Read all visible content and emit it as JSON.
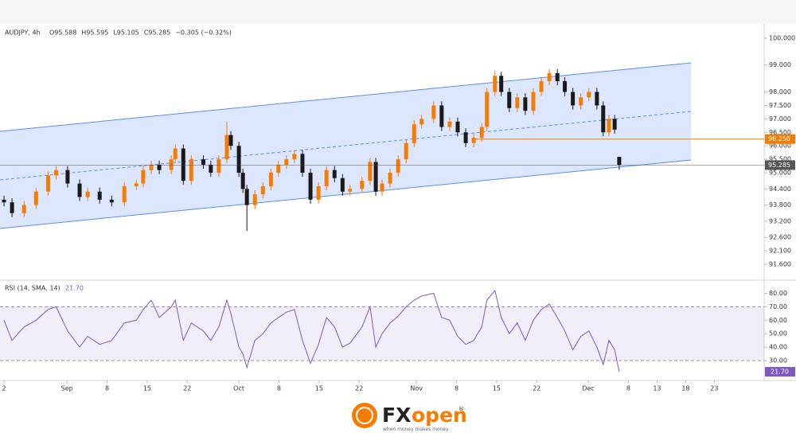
{
  "chart_data": [
    {
      "type": "candlestick",
      "title": "AUDJPY, 4h",
      "ohlc_header": [
        "O95.588",
        "H95.595",
        "L95.105",
        "C95.285",
        "−0.305 (−0.32%)"
      ],
      "x": [
        -11,
        -9.6,
        -7.5,
        -5.4,
        -3.3,
        -1.9,
        0.1,
        2.2,
        3.6,
        5.7,
        7.8,
        10.0,
        12.1,
        13.3,
        14.7,
        16.1,
        18.2,
        18.9,
        20.3,
        21.7,
        23.8,
        25.1,
        26.5,
        27.9,
        28.6,
        30.0,
        30.7,
        31.4,
        32.8,
        34.2,
        35.6,
        36.9,
        38.3,
        39.7,
        41.1,
        42.5,
        43.9,
        45.3,
        46.7,
        48.1,
        49.4,
        51.5,
        52.9,
        53.9,
        55.0,
        56.4,
        57.8,
        59.2,
        60.6,
        61.9,
        64.0,
        65.4,
        66.8,
        68.2,
        69.6,
        71.0,
        72.4,
        73.3,
        74.7,
        75.8,
        77.2,
        78.6,
        80.0,
        81.4,
        82.8,
        84.2,
        85.6,
        86.9,
        88.3,
        89.7,
        91.1,
        92.5,
        93.6,
        94.6,
        95.6,
        96.4
      ],
      "open": [
        94.0,
        93.9,
        93.5,
        93.8,
        94.3,
        94.9,
        95.1,
        94.6,
        94.1,
        94.3,
        94.0,
        93.9,
        94.5,
        94.6,
        95.1,
        95.3,
        95.1,
        95.5,
        95.9,
        94.7,
        95.5,
        95.3,
        95.0,
        95.5,
        96.4,
        96.0,
        95.0,
        94.4,
        93.8,
        94.2,
        94.5,
        95.0,
        95.3,
        95.5,
        95.7,
        95.0,
        94.0,
        94.5,
        95.1,
        94.8,
        94.3,
        94.4,
        94.7,
        95.4,
        94.3,
        94.6,
        95.0,
        95.5,
        96.1,
        96.8,
        97.0,
        97.5,
        96.7,
        96.9,
        96.5,
        96.1,
        96.3,
        96.7,
        98.0,
        98.6,
        98.0,
        97.4,
        97.8,
        97.3,
        98.0,
        98.4,
        98.7,
        98.4,
        98.0,
        97.5,
        97.8,
        98.0,
        97.5,
        96.5,
        97.0,
        95.588
      ],
      "high": [
        94.15,
        94.05,
        93.95,
        94.45,
        95.05,
        95.25,
        95.25,
        94.75,
        94.45,
        94.45,
        94.15,
        94.65,
        94.75,
        95.25,
        95.45,
        95.45,
        95.65,
        96.05,
        96.05,
        95.65,
        95.65,
        95.45,
        95.65,
        96.9,
        96.55,
        96.15,
        95.15,
        94.55,
        94.35,
        94.65,
        95.15,
        95.45,
        95.65,
        95.85,
        95.85,
        95.15,
        94.65,
        95.25,
        95.25,
        94.95,
        94.55,
        94.85,
        95.55,
        95.55,
        94.75,
        95.15,
        95.65,
        96.25,
        96.95,
        97.15,
        97.65,
        97.65,
        97.05,
        97.05,
        96.65,
        96.45,
        96.85,
        98.15,
        98.8,
        98.75,
        98.15,
        97.95,
        97.95,
        98.15,
        98.55,
        98.85,
        98.85,
        98.55,
        98.15,
        97.95,
        98.15,
        98.15,
        97.65,
        97.15,
        97.15,
        95.595
      ],
      "low": [
        93.75,
        93.35,
        93.35,
        93.65,
        94.15,
        94.75,
        94.45,
        93.95,
        93.95,
        93.85,
        93.75,
        93.75,
        94.35,
        94.45,
        94.95,
        94.95,
        94.95,
        95.35,
        94.55,
        94.55,
        95.15,
        94.85,
        94.85,
        95.35,
        95.85,
        94.85,
        94.25,
        92.84,
        93.65,
        94.05,
        94.35,
        94.85,
        95.15,
        95.35,
        94.85,
        93.85,
        93.85,
        94.35,
        94.65,
        94.15,
        94.15,
        94.25,
        94.55,
        94.15,
        94.15,
        94.45,
        94.85,
        95.35,
        95.95,
        96.65,
        96.85,
        96.55,
        96.55,
        96.35,
        95.95,
        95.95,
        96.15,
        96.55,
        97.85,
        97.85,
        97.25,
        97.25,
        97.15,
        97.15,
        97.85,
        98.25,
        98.25,
        97.85,
        97.35,
        97.35,
        97.65,
        97.35,
        96.35,
        96.35,
        96.45,
        95.105
      ],
      "close": [
        93.9,
        93.5,
        93.8,
        94.3,
        94.9,
        95.1,
        94.6,
        94.1,
        94.3,
        94.0,
        93.9,
        94.5,
        94.6,
        95.1,
        95.3,
        95.1,
        95.5,
        95.9,
        94.7,
        95.5,
        95.3,
        95.0,
        95.5,
        96.4,
        96.0,
        95.0,
        94.4,
        93.8,
        94.2,
        94.5,
        95.0,
        95.3,
        95.5,
        95.7,
        95.0,
        94.0,
        94.5,
        95.1,
        94.8,
        94.3,
        94.4,
        94.7,
        95.4,
        94.3,
        94.6,
        95.0,
        95.5,
        96.1,
        96.8,
        97.0,
        97.5,
        96.7,
        96.9,
        96.5,
        96.1,
        96.3,
        96.7,
        98.0,
        98.6,
        98.0,
        97.4,
        97.8,
        97.3,
        98.0,
        98.4,
        98.7,
        98.4,
        98.0,
        97.5,
        97.8,
        98.0,
        97.5,
        96.5,
        97.0,
        96.6,
        95.285
      ],
      "colors": {
        "up": "#f57c00",
        "down": "#1a1a1a"
      },
      "xlim": [
        -11.7,
        121.7
      ],
      "ylim": [
        91.07,
        100.38
      ],
      "yticks": [
        {
          "value": 100,
          "label": "100.000"
        },
        {
          "value": 99,
          "label": "99.000"
        },
        {
          "value": 98,
          "label": "98.000"
        },
        {
          "value": 97.5,
          "label": "97.500"
        },
        {
          "value": 97,
          "label": "97.000"
        },
        {
          "value": 96.5,
          "label": "96.500"
        },
        {
          "value": 96,
          "label": "96.000"
        },
        {
          "value": 95.5,
          "label": "95.500"
        },
        {
          "value": 95,
          "label": "95.000"
        },
        {
          "value": 94.4,
          "label": "94.400"
        },
        {
          "value": 93.8,
          "label": "93.800"
        },
        {
          "value": 93.2,
          "label": "93.200"
        },
        {
          "value": 92.6,
          "label": "92.600"
        },
        {
          "value": 92.1,
          "label": "92.100"
        },
        {
          "value": 91.6,
          "label": "91.600"
        }
      ],
      "price_lines": [
        {
          "value": 96.25,
          "label": "96.250",
          "color": "#f57c00"
        },
        {
          "value": 95.285,
          "label": "95.285",
          "color": "#555555"
        }
      ]
    },
    {
      "type": "line",
      "title": "RSI (14, SMA, 14)",
      "current_value": {
        "value": 21.7,
        "label": "21.70"
      },
      "x": [
        -11,
        -9.6,
        -7.5,
        -5.4,
        -3.3,
        -1.9,
        0.1,
        2.2,
        3.6,
        5.7,
        7.8,
        10.0,
        12.1,
        13.3,
        14.7,
        16.1,
        18.2,
        18.9,
        20.3,
        21.7,
        23.8,
        25.1,
        26.5,
        27.9,
        28.6,
        30.0,
        30.7,
        31.4,
        32.8,
        34.2,
        35.6,
        36.9,
        38.3,
        39.7,
        41.1,
        42.5,
        43.9,
        45.3,
        46.7,
        48.1,
        49.4,
        51.5,
        52.9,
        53.9,
        55.0,
        56.4,
        57.8,
        59.2,
        60.6,
        61.9,
        64.0,
        65.4,
        66.8,
        68.2,
        69.6,
        71.0,
        72.4,
        73.3,
        74.7,
        75.8,
        77.2,
        78.6,
        80.0,
        81.4,
        82.8,
        84.2,
        85.6,
        86.9,
        88.3,
        89.7,
        91.1,
        92.5,
        93.6,
        94.6,
        95.6,
        96.4
      ],
      "values": [
        60,
        45,
        55,
        60,
        68,
        70,
        52,
        40,
        48,
        42,
        45,
        58,
        60,
        68,
        75,
        62,
        70,
        75,
        45,
        58,
        52,
        45,
        55,
        75,
        65,
        40,
        35,
        25,
        45,
        50,
        58,
        62,
        66,
        68,
        45,
        28,
        42,
        62,
        55,
        40,
        43,
        55,
        70,
        40,
        50,
        58,
        63,
        70,
        75,
        78,
        80,
        62,
        60,
        48,
        42,
        45,
        55,
        75,
        82,
        62,
        50,
        58,
        45,
        60,
        68,
        72,
        62,
        52,
        38,
        48,
        52,
        40,
        27,
        45,
        38,
        21.7
      ],
      "color": "#7e57c2",
      "band": [
        30,
        70
      ],
      "xlim": [
        -11.7,
        121.7
      ],
      "ylim": [
        17,
        88
      ],
      "yticks": [
        {
          "value": 80,
          "label": "80.00"
        },
        {
          "value": 70,
          "label": "70.00"
        },
        {
          "value": 60,
          "label": "60.00"
        },
        {
          "value": 50,
          "label": "50.00"
        },
        {
          "value": 40,
          "label": "40.00"
        },
        {
          "value": 30,
          "label": "30.00"
        }
      ],
      "xticks": [
        {
          "value": -11,
          "label": "2"
        },
        {
          "value": 0,
          "label": "Sep"
        },
        {
          "value": 7,
          "label": "8"
        },
        {
          "value": 14,
          "label": "15"
        },
        {
          "value": 21,
          "label": "22"
        },
        {
          "value": 30,
          "label": "Oct"
        },
        {
          "value": 37,
          "label": "8"
        },
        {
          "value": 44,
          "label": "15"
        },
        {
          "value": 51,
          "label": "22"
        },
        {
          "value": 61,
          "label": "Nov"
        },
        {
          "value": 68,
          "label": "8"
        },
        {
          "value": 75,
          "label": "15"
        },
        {
          "value": 82,
          "label": "22"
        },
        {
          "value": 91,
          "label": "Dec"
        },
        {
          "value": 98,
          "label": "8"
        },
        {
          "value": 103,
          "label": "13"
        },
        {
          "value": 108,
          "label": "18"
        },
        {
          "value": 113,
          "label": "23"
        }
      ]
    }
  ],
  "branding": {
    "brand_dark": "FX",
    "brand_orange": "open",
    "registered": "®",
    "tagline": "when money makes money"
  }
}
